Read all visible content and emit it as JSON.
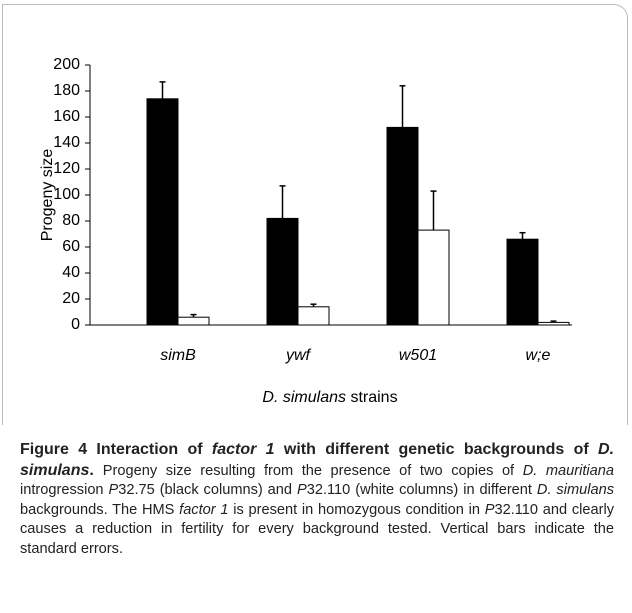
{
  "chart_data": {
    "type": "bar",
    "ylabel": "Progeny size",
    "xlabel": [
      "D. simulans",
      " strains"
    ],
    "categories": [
      "simB",
      "ywf",
      "w501",
      "w;e"
    ],
    "series": [
      {
        "color": "#000000",
        "values": [
          174,
          82,
          152,
          66
        ],
        "errors": [
          13,
          25,
          32,
          5
        ]
      },
      {
        "color": "#ffffff",
        "values": [
          6,
          14,
          73,
          2
        ],
        "errors": [
          2,
          2,
          30,
          1
        ]
      }
    ],
    "ylim": [
      0,
      200
    ],
    "yticks": [
      0,
      20,
      40,
      60,
      80,
      100,
      120,
      140,
      160,
      180,
      200
    ]
  },
  "caption": [
    "Figure 4 Interaction of ",
    "factor 1",
    " with different genetic backgrounds of ",
    "D. simulans",
    ". ",
    "Progeny size resulting from the presence of two copies of ",
    "D. mauritiana",
    " introgression ",
    "P",
    "32.75 (black columns) and ",
    "P",
    "32.110 (white columns) in different ",
    "D. simulans",
    " backgrounds. The HMS ",
    "factor 1",
    " is present in homozygous condition in ",
    "P",
    "32.110 and clearly causes a reduction in fertility for every background tested. Vertical bars indicate the standard errors."
  ]
}
